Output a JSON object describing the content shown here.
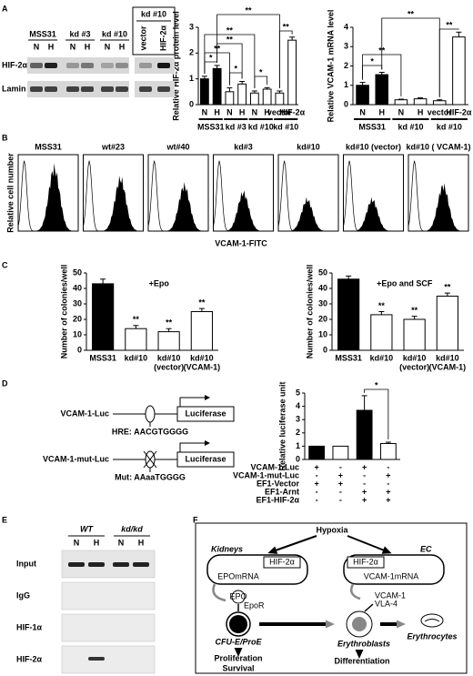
{
  "panel_labels": [
    "A",
    "B",
    "C",
    "D",
    "E",
    "F"
  ],
  "chart_data": [
    {
      "type": "bar",
      "ylabel": "Relative HIF-2α protein level",
      "categories": [
        "N",
        "H",
        "N",
        "H",
        "N",
        "H",
        "vector",
        "HIF-2α"
      ],
      "groups": [
        "MSS31",
        "kd #3",
        "kd #10",
        "kd #10"
      ],
      "values": [
        1.0,
        1.4,
        0.5,
        0.8,
        0.45,
        0.6,
        0.45,
        2.5
      ],
      "errors": [
        0.1,
        0.12,
        0.15,
        0.1,
        0.08,
        0.06,
        0.08,
        0.12
      ],
      "colors": [
        "#000000",
        "#000000",
        "#ffffff",
        "#ffffff",
        "#ffffff",
        "#ffffff",
        "#ffffff",
        "#ffffff"
      ],
      "ylim": [
        0,
        3
      ],
      "yticks": [
        0,
        1,
        2,
        3
      ],
      "annotations": [
        "*",
        "**",
        "**",
        "**",
        "**",
        "*",
        "*",
        "**"
      ]
    },
    {
      "type": "bar",
      "ylabel": "Relative VCAM-1 mRNA level",
      "categories": [
        "N",
        "H",
        "N",
        "H",
        "vector",
        "HIF-2α"
      ],
      "groups": [
        "MSS31",
        "kd #10",
        "kd #10"
      ],
      "values": [
        1.0,
        1.55,
        0.25,
        0.3,
        0.2,
        3.5
      ],
      "errors": [
        0.15,
        0.12,
        0.03,
        0.05,
        0.05,
        0.25
      ],
      "colors": [
        "#000000",
        "#000000",
        "#ffffff",
        "#ffffff",
        "#ffffff",
        "#ffffff"
      ],
      "ylim": [
        0,
        4
      ],
      "yticks": [
        0,
        1,
        2,
        3,
        4
      ],
      "annotations": [
        "*",
        "**",
        "**",
        "**"
      ]
    },
    {
      "type": "bar",
      "title": "+Epo",
      "ylabel": "Number of colonies/well",
      "categories": [
        "MSS31",
        "kd#10",
        "kd#10",
        "kd#10"
      ],
      "sublabels": [
        null,
        null,
        "(vector)",
        "(VCAM-1)"
      ],
      "values": [
        43,
        14,
        12,
        25
      ],
      "errors": [
        3,
        2,
        2,
        2
      ],
      "colors": [
        "#000000",
        "#ffffff",
        "#ffffff",
        "#ffffff"
      ],
      "ylim": [
        0,
        50
      ],
      "yticks": [
        0,
        10,
        20,
        30,
        40,
        50
      ],
      "annotations": [
        "**",
        "**",
        "**"
      ]
    },
    {
      "type": "bar",
      "title": "+Epo and SCF",
      "ylabel": "Number of colonies/well",
      "categories": [
        "MSS31",
        "kd#10",
        "kd#10",
        "kd#10"
      ],
      "sublabels": [
        null,
        null,
        "(vector)",
        "(VCAM-1)"
      ],
      "values": [
        46,
        23,
        20,
        35
      ],
      "errors": [
        2,
        2,
        2,
        2
      ],
      "colors": [
        "#000000",
        "#ffffff",
        "#ffffff",
        "#ffffff"
      ],
      "ylim": [
        0,
        50
      ],
      "yticks": [
        0,
        10,
        20,
        30,
        40,
        50
      ],
      "annotations": [
        "**",
        "**",
        "**"
      ]
    },
    {
      "type": "bar",
      "ylabel": "Relative luciferase unit",
      "values": [
        1.0,
        1.0,
        3.7,
        1.2
      ],
      "errors": [
        null,
        null,
        1.1,
        0.1
      ],
      "colors": [
        "#000000",
        "#ffffff",
        "#000000",
        "#ffffff"
      ],
      "ylim": [
        0,
        5
      ],
      "yticks": [
        0,
        1,
        2,
        3,
        4,
        5
      ],
      "annotations": [
        "*"
      ],
      "conditions": [
        {
          "label": "VCAM-1-Luc",
          "signs": [
            "+",
            "-",
            "+",
            "-"
          ]
        },
        {
          "label": "VCAM-1-mut-Luc",
          "signs": [
            "-",
            "+",
            "-",
            "+"
          ]
        },
        {
          "label": "EF1-Vector",
          "signs": [
            "+",
            "+",
            "-",
            "-"
          ]
        },
        {
          "label": "EF1-Arnt",
          "signs": [
            "-",
            "-",
            "+",
            "+"
          ]
        },
        {
          "label": "EF1-HIF-2α",
          "signs": [
            "-",
            "-",
            "+",
            "+"
          ]
        }
      ]
    }
  ],
  "blot_A": {
    "groups": [
      "MSS31",
      "kd #3",
      "kd #10"
    ],
    "lanes": [
      "N",
      "H",
      "N",
      "H",
      "N",
      "H"
    ],
    "boxed_group": "kd #10",
    "boxed_lanes": [
      "vector",
      "HIF-2α"
    ],
    "rows": [
      "HIF-2α",
      "Lamin B"
    ]
  },
  "flow_B": {
    "panels": [
      "MSS31",
      "wt#23",
      "wt#40",
      "kd#3",
      "kd#10",
      "kd#10 (vector)",
      "kd#10 ( VCAM-1)"
    ],
    "ylabel": "Relative cell number",
    "xlabel": "VCAM-1-FITC"
  },
  "constructs_D": [
    {
      "name": "VCAM-1-Luc",
      "box": "Luciferase",
      "site": "HRE: AACGTGGGG"
    },
    {
      "name": "VCAM-1-mut-Luc",
      "box": "Luciferase",
      "site": "Mut: AAaaTGGGG"
    }
  ],
  "gel_E": {
    "groups": [
      "WT",
      "kd/kd"
    ],
    "lanes": [
      "N",
      "H",
      "N",
      "H"
    ],
    "rows": [
      "Input",
      "IgG",
      "HIF-1α",
      "HIF-2α"
    ]
  },
  "diagram_F": {
    "top": "Hypoxia",
    "left_title": "Kidneys",
    "left_factor": "HIF-2α",
    "left_mrna": "EPOmRNA",
    "epo": "EPO",
    "epor": "EpoR",
    "left_cell": "CFU-E/ProE",
    "left_outcome": [
      "Proliferation",
      "Survival"
    ],
    "right_title": "EC",
    "right_factor": "HIF-2α",
    "right_mrna": "VCAM-1mRNA",
    "vcam": "VCAM-1",
    "vla": "VLA-4",
    "right_cell": "Erythroblasts",
    "right_outcome": "Differentiation",
    "final_cell": "Erythrocytes"
  }
}
